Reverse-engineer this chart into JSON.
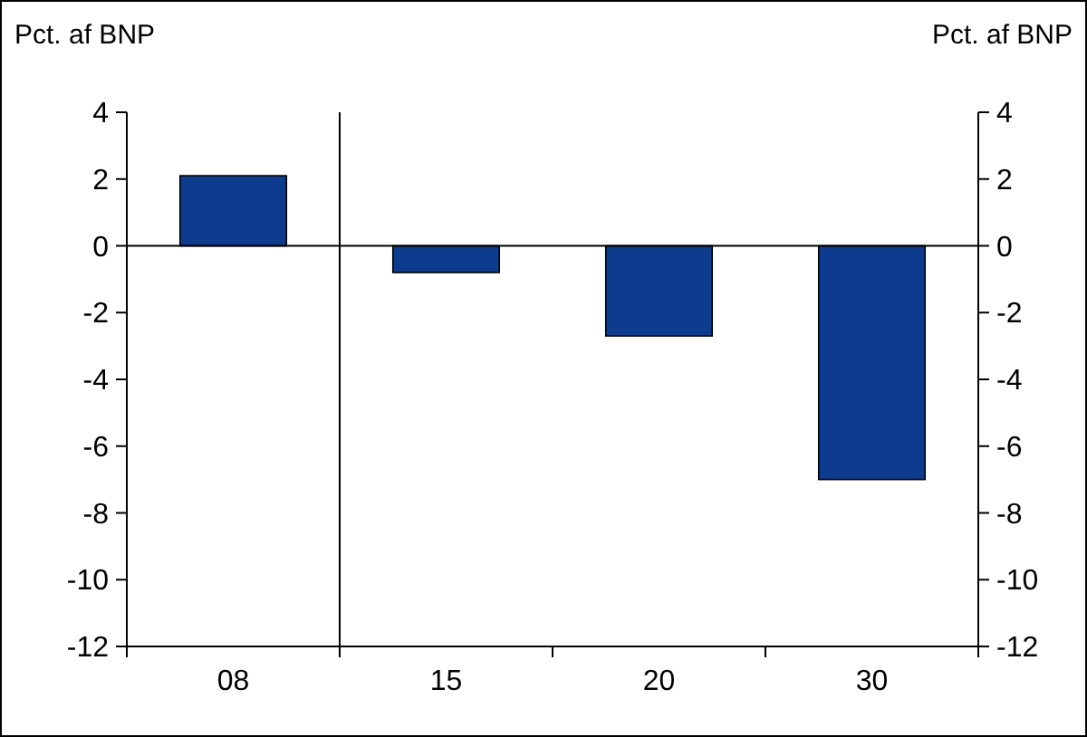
{
  "chart_data": {
    "type": "bar",
    "ylabel": "Pct. af BNP",
    "y2label": "Pct. af BNP",
    "categories": [
      "08",
      "15",
      "20",
      "30"
    ],
    "values": [
      2.1,
      -0.8,
      -2.7,
      -7.0
    ],
    "color": "#0d3b8e",
    "ylim": [
      -12,
      4
    ],
    "yticks": [
      -12,
      -10,
      -8,
      -6,
      -4,
      -2,
      0,
      2,
      4
    ],
    "y2lim": [
      -12,
      4
    ],
    "y2ticks": [
      -12,
      -10,
      -8,
      -6,
      -4,
      -2,
      0,
      2,
      4
    ]
  }
}
